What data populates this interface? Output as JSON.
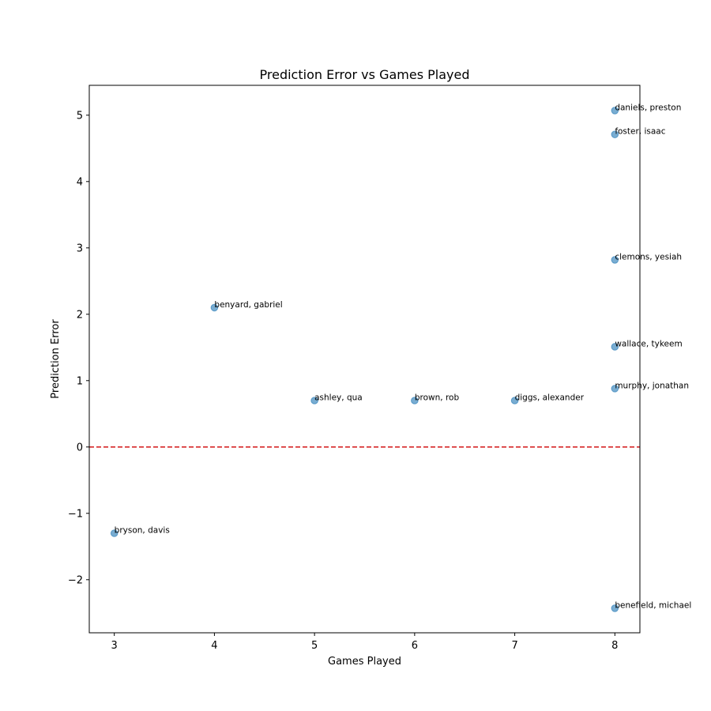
{
  "chart_data": {
    "type": "scatter",
    "title": "Prediction Error vs Games Played",
    "xlabel": "Games Played",
    "ylabel": "Prediction Error",
    "xlim": [
      2.75,
      8.25
    ],
    "ylim": [
      -2.8,
      5.45
    ],
    "xticks": [
      3,
      4,
      5,
      6,
      7,
      8
    ],
    "yticks": [
      -2,
      -1,
      0,
      1,
      2,
      3,
      4,
      5
    ],
    "grid": false,
    "reference_line": {
      "y": 0,
      "color": "#d62728",
      "style": "dashed"
    },
    "point_color": "#1f77b4",
    "point_alpha": 0.6,
    "points": [
      {
        "label": "daniels, preston",
        "x": 8,
        "y": 5.07
      },
      {
        "label": "foster, isaac",
        "x": 8,
        "y": 4.71
      },
      {
        "label": "clemons, yesiah",
        "x": 8,
        "y": 2.82
      },
      {
        "label": "benyard, gabriel",
        "x": 4,
        "y": 2.1
      },
      {
        "label": "wallace, tykeem",
        "x": 8,
        "y": 1.51
      },
      {
        "label": "murphy, jonathan",
        "x": 8,
        "y": 0.88
      },
      {
        "label": "ashley, qua",
        "x": 5,
        "y": 0.7
      },
      {
        "label": "brown, rob",
        "x": 6,
        "y": 0.7
      },
      {
        "label": "diggs, alexander",
        "x": 7,
        "y": 0.7
      },
      {
        "label": "bryson, davis",
        "x": 3,
        "y": -1.3
      },
      {
        "label": "benefield, michael",
        "x": 8,
        "y": -2.43
      }
    ]
  }
}
